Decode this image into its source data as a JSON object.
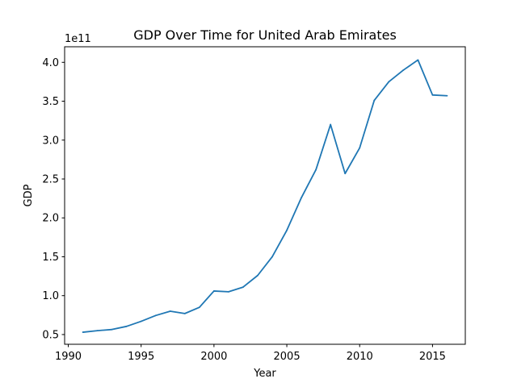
{
  "chart_data": {
    "type": "line",
    "title": "GDP Over Time for United Arab Emirates",
    "xlabel": "Year",
    "ylabel": "GDP",
    "y_offset_label": "1e11",
    "xlim": [
      1989.75,
      2017.25
    ],
    "ylim": [
      0.375,
      4.2
    ],
    "x_ticks": [
      1990,
      1995,
      2000,
      2005,
      2010,
      2015
    ],
    "y_ticks": [
      0.5,
      1.0,
      1.5,
      2.0,
      2.5,
      3.0,
      3.5,
      4.0
    ],
    "y_tick_labels": [
      "0.5",
      "1.0",
      "1.5",
      "2.0",
      "2.5",
      "3.0",
      "3.5",
      "4.0"
    ],
    "grid": false,
    "line_color": "#1f77b4",
    "series": [
      {
        "x": [
          1991,
          1992,
          1993,
          1994,
          1995,
          1996,
          1997,
          1998,
          1999,
          2000,
          2001,
          2002,
          2003,
          2004,
          2005,
          2006,
          2007,
          2008,
          2009,
          2010,
          2011,
          2012,
          2013,
          2014,
          2015,
          2016
        ],
        "values": [
          0.53,
          0.55,
          0.565,
          0.605,
          0.67,
          0.745,
          0.8,
          0.77,
          0.85,
          1.06,
          1.05,
          1.11,
          1.26,
          1.5,
          1.84,
          2.26,
          2.62,
          3.2,
          2.57,
          2.9,
          3.51,
          3.75,
          3.9,
          4.03,
          3.58,
          3.57
        ]
      }
    ]
  }
}
